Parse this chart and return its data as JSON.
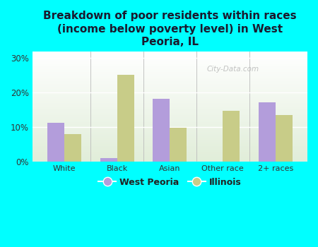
{
  "title": "Breakdown of poor residents within races\n(income below poverty level) in West\nPeoria, IL",
  "categories": [
    "White",
    "Black",
    "Asian",
    "Other race",
    "2+ races"
  ],
  "west_peoria": [
    11.2,
    1.0,
    18.2,
    0.0,
    17.2
  ],
  "illinois": [
    8.0,
    25.2,
    9.8,
    14.8,
    13.5
  ],
  "west_peoria_color": "#b39ddb",
  "illinois_color": "#c8cc88",
  "background_color": "#00ffff",
  "yticks": [
    0,
    10,
    20,
    30
  ],
  "ylim": [
    0,
    32
  ],
  "bar_width": 0.32,
  "legend_labels": [
    "West Peoria",
    "Illinois"
  ],
  "watermark": "City-Data.com",
  "title_fontsize": 11,
  "title_color": "#1a1a2e"
}
